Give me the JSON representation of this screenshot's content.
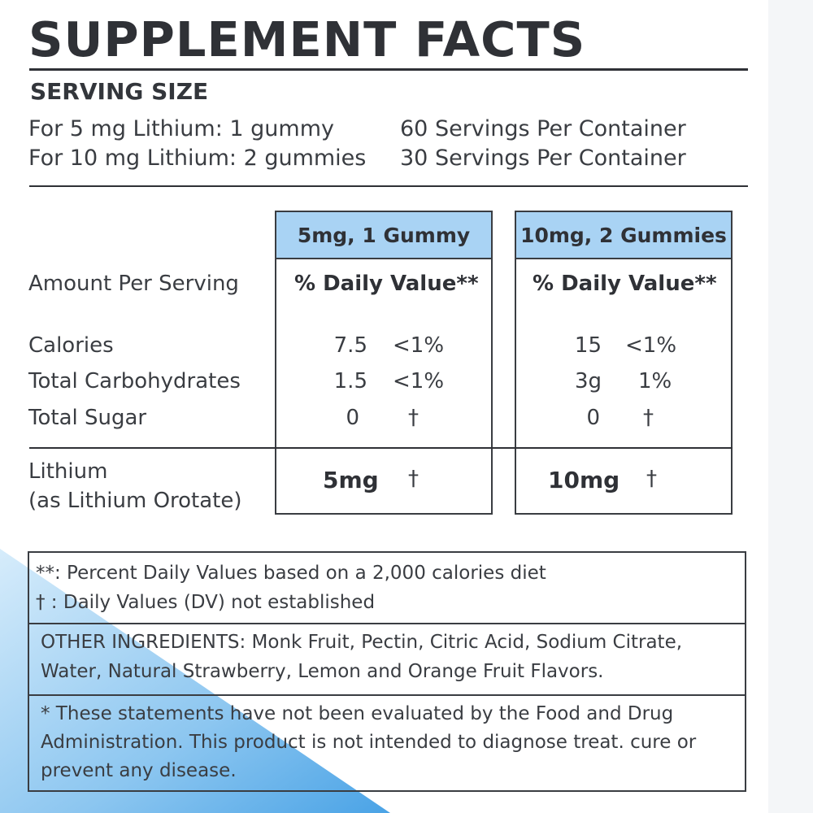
{
  "title": "SUPPLEMENT FACTS",
  "serving": {
    "heading": "SERVING SIZE",
    "rows": [
      {
        "size": "For 5 mg Lithium: 1 gummy",
        "servings": "60 Servings Per Container"
      },
      {
        "size": "For 10 mg Lithium: 2 gummies",
        "servings": "30 Servings Per Container"
      }
    ]
  },
  "table": {
    "amount_label": "Amount Per Serving",
    "columns": [
      {
        "header": "5mg, 1 Gummy",
        "dv_label": "% Daily Value**"
      },
      {
        "header": "10mg, 2 Gummies",
        "dv_label": "% Daily Value**"
      }
    ],
    "rows": [
      {
        "name": "Calories",
        "c1_amount": "7.5",
        "c1_dv": "<1%",
        "c2_amount": "15",
        "c2_dv": "<1%"
      },
      {
        "name": "Total Carbohydrates",
        "c1_amount": "1.5",
        "c1_dv": "<1%",
        "c2_amount": "3g",
        "c2_dv": "1%"
      },
      {
        "name": "Total Sugar",
        "c1_amount": "0",
        "c1_dv": "†",
        "c2_amount": "0",
        "c2_dv": "†"
      }
    ],
    "lithium": {
      "name_line1": "Lithium",
      "name_line2": "(as Lithium Orotate)",
      "c1_amount": "5mg",
      "c1_dv": "†",
      "c2_amount": "10mg",
      "c2_dv": "†"
    }
  },
  "notes": {
    "footnote1": "**: Percent Daily Values based on a 2,000 calories diet",
    "footnote2": "† : Daily Values (DV) not established",
    "ingredients_line1": "OTHER INGREDIENTS: Monk Fruit, Pectin, Citric Acid, Sodium Citrate,",
    "ingredients_line2": "Water, Natural Strawberry, Lemon and Orange Fruit Flavors.",
    "disclaimer_line1": "* These statements have not been evaluated by the Food and Drug",
    "disclaimer_line2": "Administration. This product is not intended to diagnose treat. cure or",
    "disclaimer_line3": "prevent any disease."
  },
  "colors": {
    "header_fill": "#a9d3f4",
    "accent_blue": "#4aa3e6",
    "text": "#3a3d42"
  }
}
